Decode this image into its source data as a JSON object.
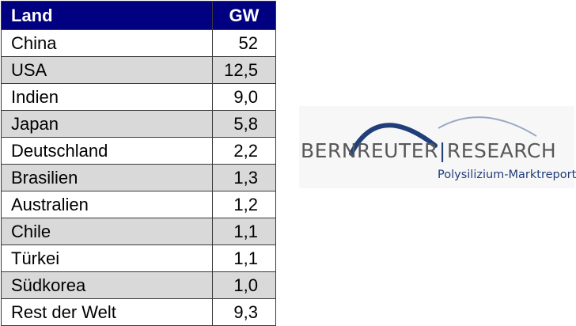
{
  "chart_data": {
    "type": "table",
    "columns": [
      "Land",
      "GW"
    ],
    "rows": [
      [
        "China",
        "52"
      ],
      [
        "USA",
        "12,5"
      ],
      [
        "Indien",
        "9,0"
      ],
      [
        "Japan",
        "5,8"
      ],
      [
        "Deutschland",
        "2,2"
      ],
      [
        "Brasilien",
        "1,3"
      ],
      [
        "Australien",
        "1,2"
      ],
      [
        "Chile",
        "1,1"
      ],
      [
        "Türkei",
        "1,1"
      ],
      [
        "Südkorea",
        "1,0"
      ],
      [
        "Rest der Welt",
        "9,3"
      ]
    ],
    "header_color": "#000080",
    "alt_row_color": "#d9d9d9"
  },
  "logo": {
    "word1": "BERNREUTER",
    "word2": "RESEARCH",
    "tagline": "Polysilizium-Marktreports",
    "text_color": "#58585a",
    "accent_color": "#1f3e7a"
  }
}
